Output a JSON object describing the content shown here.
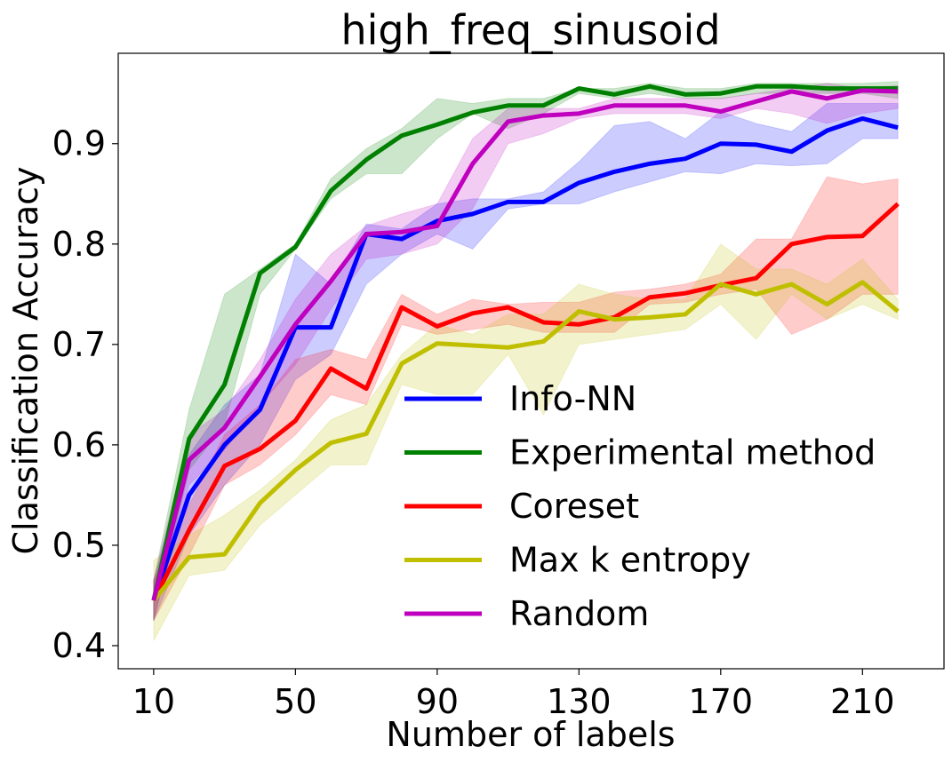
{
  "chart_data": {
    "type": "line",
    "title": "high_freq_sinusoid",
    "xlabel": "Number of labels",
    "ylabel": "Classification Accuracy",
    "xlim": [
      0,
      233
    ],
    "ylim": [
      0.377,
      0.99
    ],
    "xticks": [
      10,
      50,
      90,
      130,
      170,
      210
    ],
    "yticks": [
      0.4,
      0.5,
      0.6,
      0.7,
      0.8,
      0.9
    ],
    "ytick_labels": [
      "0.4",
      "0.5",
      "0.6",
      "0.7",
      "0.8",
      "0.9"
    ],
    "grid": false,
    "legend_position": "lower-right",
    "x": [
      10,
      20,
      30,
      40,
      50,
      60,
      70,
      80,
      90,
      100,
      110,
      120,
      130,
      140,
      150,
      160,
      170,
      180,
      190,
      200,
      210,
      220
    ],
    "series": [
      {
        "name": "Info-NN",
        "color": "#0000ff",
        "values": [
          0.445,
          0.55,
          0.6,
          0.635,
          0.717,
          0.717,
          0.81,
          0.805,
          0.823,
          0.83,
          0.842,
          0.842,
          0.861,
          0.872,
          0.88,
          0.885,
          0.9,
          0.899,
          0.892,
          0.913,
          0.925,
          0.916
        ],
        "band_low": [
          0.425,
          0.51,
          0.56,
          0.6,
          0.665,
          0.69,
          0.76,
          0.79,
          0.81,
          0.795,
          0.835,
          0.84,
          0.84,
          0.852,
          0.862,
          0.872,
          0.87,
          0.88,
          0.878,
          0.88,
          0.905,
          0.905
        ],
        "band_high": [
          0.465,
          0.59,
          0.64,
          0.67,
          0.79,
          0.76,
          0.82,
          0.815,
          0.84,
          0.845,
          0.845,
          0.852,
          0.882,
          0.918,
          0.922,
          0.905,
          0.932,
          0.92,
          0.912,
          0.94,
          0.94,
          0.94
        ]
      },
      {
        "name": "Experimental method",
        "color": "#008000",
        "values": [
          0.445,
          0.606,
          0.66,
          0.771,
          0.797,
          0.853,
          0.884,
          0.908,
          0.919,
          0.931,
          0.938,
          0.938,
          0.955,
          0.949,
          0.957,
          0.949,
          0.95,
          0.957,
          0.957,
          0.955,
          0.955,
          0.955
        ],
        "band_low": [
          0.425,
          0.575,
          0.62,
          0.75,
          0.795,
          0.845,
          0.87,
          0.87,
          0.905,
          0.93,
          0.915,
          0.93,
          0.95,
          0.945,
          0.95,
          0.945,
          0.945,
          0.95,
          0.95,
          0.95,
          0.95,
          0.945
        ],
        "band_high": [
          0.465,
          0.635,
          0.75,
          0.775,
          0.8,
          0.865,
          0.895,
          0.915,
          0.945,
          0.94,
          0.945,
          0.945,
          0.955,
          0.955,
          0.96,
          0.955,
          0.955,
          0.96,
          0.96,
          0.96,
          0.96,
          0.962
        ]
      },
      {
        "name": "Coreset",
        "color": "#ff0000",
        "values": [
          0.445,
          0.515,
          0.579,
          0.596,
          0.624,
          0.676,
          0.656,
          0.737,
          0.718,
          0.731,
          0.737,
          0.722,
          0.72,
          0.727,
          0.747,
          0.751,
          0.759,
          0.766,
          0.8,
          0.807,
          0.808,
          0.84
        ],
        "band_low": [
          0.425,
          0.49,
          0.56,
          0.58,
          0.61,
          0.65,
          0.64,
          0.72,
          0.71,
          0.715,
          0.72,
          0.712,
          0.712,
          0.712,
          0.74,
          0.742,
          0.75,
          0.755,
          0.71,
          0.725,
          0.75,
          0.75
        ],
        "band_high": [
          0.465,
          0.54,
          0.61,
          0.64,
          0.685,
          0.695,
          0.685,
          0.75,
          0.73,
          0.745,
          0.74,
          0.742,
          0.742,
          0.752,
          0.755,
          0.76,
          0.77,
          0.805,
          0.805,
          0.867,
          0.86,
          0.865
        ]
      },
      {
        "name": "Max k entropy",
        "color": "#bfbf00",
        "values": [
          0.445,
          0.488,
          0.491,
          0.542,
          0.575,
          0.602,
          0.611,
          0.681,
          0.701,
          0.699,
          0.697,
          0.703,
          0.733,
          0.725,
          0.727,
          0.73,
          0.76,
          0.75,
          0.76,
          0.74,
          0.762,
          0.733
        ],
        "band_low": [
          0.405,
          0.47,
          0.475,
          0.52,
          0.55,
          0.58,
          0.58,
          0.66,
          0.65,
          0.65,
          0.69,
          0.63,
          0.7,
          0.705,
          0.71,
          0.715,
          0.74,
          0.705,
          0.75,
          0.725,
          0.74,
          0.725
        ],
        "band_high": [
          0.485,
          0.51,
          0.53,
          0.555,
          0.585,
          0.625,
          0.64,
          0.69,
          0.72,
          0.71,
          0.73,
          0.73,
          0.76,
          0.75,
          0.745,
          0.745,
          0.8,
          0.775,
          0.775,
          0.76,
          0.785,
          0.745
        ]
      },
      {
        "name": "Random",
        "color": "#bf00bf",
        "values": [
          0.445,
          0.585,
          0.617,
          0.668,
          0.72,
          0.763,
          0.81,
          0.812,
          0.818,
          0.88,
          0.922,
          0.928,
          0.93,
          0.938,
          0.938,
          0.938,
          0.932,
          0.942,
          0.952,
          0.945,
          0.953,
          0.952
        ],
        "band_low": [
          0.425,
          0.56,
          0.595,
          0.64,
          0.68,
          0.735,
          0.785,
          0.79,
          0.8,
          0.835,
          0.9,
          0.91,
          0.925,
          0.93,
          0.93,
          0.93,
          0.925,
          0.935,
          0.93,
          0.92,
          0.93,
          0.935
        ],
        "band_high": [
          0.465,
          0.61,
          0.635,
          0.685,
          0.745,
          0.79,
          0.818,
          0.83,
          0.84,
          0.905,
          0.935,
          0.935,
          0.935,
          0.945,
          0.945,
          0.945,
          0.945,
          0.95,
          0.955,
          0.96,
          0.955,
          0.958
        ]
      }
    ]
  }
}
